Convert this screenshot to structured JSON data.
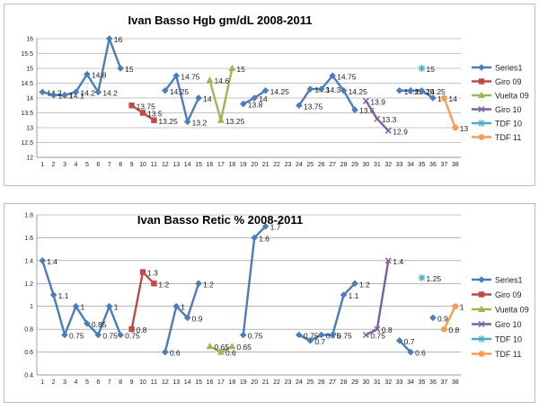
{
  "chart_data": [
    {
      "type": "line",
      "title": "Ivan Basso Hgb gm/dL 2008-2011",
      "xlabel": "",
      "ylabel": "",
      "x": [
        1,
        2,
        3,
        4,
        5,
        6,
        7,
        8,
        9,
        10,
        11,
        12,
        13,
        14,
        15,
        16,
        17,
        18,
        19,
        20,
        21,
        22,
        23,
        24,
        25,
        26,
        27,
        28,
        29,
        30,
        31,
        32,
        33,
        34,
        35,
        36,
        37,
        38
      ],
      "ylim": [
        12,
        16
      ],
      "yticks": [
        12,
        12.5,
        13,
        13.5,
        14,
        14.5,
        15,
        15.5,
        16
      ],
      "series": [
        {
          "name": "Series1",
          "color": "#4a7ebb",
          "marker": "diamond",
          "points": [
            [
              1,
              14.2
            ],
            [
              2,
              14.1
            ],
            [
              3,
              14.1
            ],
            [
              4,
              14.2
            ],
            [
              5,
              14.8
            ],
            [
              6,
              14.2
            ],
            [
              7,
              16
            ],
            [
              8,
              15
            ],
            [
              12,
              14.25
            ],
            [
              13,
              14.75
            ],
            [
              14,
              13.2
            ],
            [
              15,
              14
            ],
            [
              19,
              13.8
            ],
            [
              20,
              14
            ],
            [
              21,
              14.25
            ],
            [
              24,
              13.75
            ],
            [
              25,
              14.3
            ],
            [
              26,
              14.3
            ],
            [
              27,
              14.75
            ],
            [
              28,
              14.25
            ],
            [
              29,
              13.6
            ],
            [
              33,
              14.25
            ],
            [
              34,
              14.25
            ],
            [
              35,
              14.25
            ],
            [
              36,
              14
            ]
          ],
          "labels": [
            "14.2",
            "14.1",
            "14.1",
            "14.2",
            "14.8",
            "14.2",
            "16",
            "15",
            "14.25",
            "14.75",
            "13.2",
            "14",
            "13.8",
            "14",
            "14.25",
            "13.75",
            "14.3",
            "14.3",
            "14.75",
            "14.25",
            "13.6",
            "14.25",
            "14.25",
            "14.25",
            "14"
          ]
        },
        {
          "name": "Giro 09",
          "color": "#be4b48",
          "marker": "square",
          "points": [
            [
              9,
              13.75
            ],
            [
              10,
              13.5
            ],
            [
              11,
              13.25
            ]
          ],
          "labels": [
            "13.75",
            "13.5",
            "13.25"
          ]
        },
        {
          "name": "Vuelta 09",
          "color": "#98b954",
          "marker": "triangle",
          "points": [
            [
              16,
              14.6
            ],
            [
              17,
              13.25
            ],
            [
              18,
              15
            ]
          ],
          "labels": [
            "14.6",
            "13.25",
            "15"
          ]
        },
        {
          "name": "Giro 10",
          "color": "#7d60a0",
          "marker": "x",
          "points": [
            [
              30,
              13.9
            ],
            [
              31,
              13.3
            ],
            [
              32,
              12.9
            ]
          ],
          "labels": [
            "13.9",
            "13.3",
            "12.9"
          ]
        },
        {
          "name": "TDF 10",
          "color": "#46aac4",
          "marker": "star",
          "points": [
            [
              35,
              15
            ]
          ],
          "labels": [
            "15"
          ]
        },
        {
          "name": "TDF 11",
          "color": "#f59d56",
          "marker": "circle",
          "points": [
            [
              37,
              14
            ],
            [
              38,
              13
            ]
          ],
          "labels": [
            "14",
            "13"
          ]
        }
      ]
    },
    {
      "type": "line",
      "title": "Ivan Basso Retic % 2008-2011",
      "xlabel": "",
      "ylabel": "",
      "x": [
        1,
        2,
        3,
        4,
        5,
        6,
        7,
        8,
        9,
        10,
        11,
        12,
        13,
        14,
        15,
        16,
        17,
        18,
        19,
        20,
        21,
        22,
        23,
        24,
        25,
        26,
        27,
        28,
        29,
        30,
        31,
        32,
        33,
        34,
        35,
        36,
        37,
        38
      ],
      "ylim": [
        0.4,
        1.8
      ],
      "yticks": [
        0.4,
        0.6,
        0.8,
        1,
        1.2,
        1.4,
        1.6,
        1.8
      ],
      "series": [
        {
          "name": "Series1",
          "color": "#4a7ebb",
          "marker": "diamond",
          "points": [
            [
              1,
              1.4
            ],
            [
              2,
              1.1
            ],
            [
              3,
              0.75
            ],
            [
              4,
              1
            ],
            [
              5,
              0.85
            ],
            [
              6,
              0.75
            ],
            [
              7,
              1
            ],
            [
              8,
              0.75
            ],
            [
              12,
              0.6
            ],
            [
              13,
              1
            ],
            [
              14,
              0.9
            ],
            [
              15,
              1.2
            ],
            [
              19,
              0.75
            ],
            [
              20,
              1.6
            ],
            [
              21,
              1.7
            ],
            [
              24,
              0.75
            ],
            [
              25,
              0.7
            ],
            [
              26,
              0.75
            ],
            [
              27,
              0.75
            ],
            [
              28,
              1.1
            ],
            [
              29,
              1.2
            ],
            [
              33,
              0.7
            ],
            [
              34,
              0.6
            ],
            [
              36,
              0.9
            ]
          ],
          "labels": [
            "1.4",
            "1.1",
            "0.75",
            "1",
            "0.85",
            "0.75",
            "1",
            "0.75",
            "0.6",
            "1",
            "0.9",
            "1.2",
            "0.75",
            "1.6",
            "1.7",
            "0.75",
            "0.7",
            "0.75",
            "0.75",
            "1.1",
            "1.2",
            "0.7",
            "0.6",
            "0.9"
          ]
        },
        {
          "name": "Giro 09",
          "color": "#be4b48",
          "marker": "square",
          "points": [
            [
              9,
              0.8
            ],
            [
              10,
              1.3
            ],
            [
              11,
              1.2
            ]
          ],
          "labels": [
            "0.8",
            "1.3",
            "1.2"
          ]
        },
        {
          "name": "Vuelta 09",
          "color": "#98b954",
          "marker": "triangle",
          "points": [
            [
              16,
              0.65
            ],
            [
              17,
              0.6
            ],
            [
              18,
              0.65
            ]
          ],
          "labels": [
            "0.65",
            "0.6",
            "0.65"
          ]
        },
        {
          "name": "Giro 10",
          "color": "#7d60a0",
          "marker": "x",
          "points": [
            [
              30,
              0.75
            ],
            [
              31,
              0.8
            ],
            [
              32,
              1.4
            ]
          ],
          "labels": [
            "0.75",
            "0.8",
            "1.4"
          ]
        },
        {
          "name": "TDF 10",
          "color": "#46aac4",
          "marker": "star",
          "points": [
            [
              35,
              1.25
            ]
          ],
          "labels": [
            "1.25"
          ]
        },
        {
          "name": "TDF 11",
          "color": "#f59d56",
          "marker": "circle",
          "points": [
            [
              37,
              0.8
            ],
            [
              38,
              1
            ]
          ],
          "labels": [
            "0.8",
            "1"
          ]
        }
      ]
    }
  ]
}
